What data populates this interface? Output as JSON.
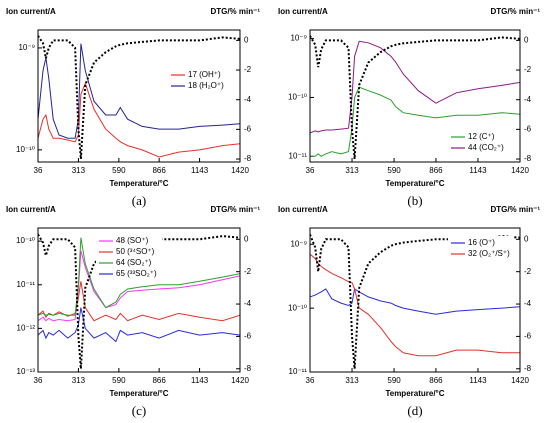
{
  "chart_data": [
    {
      "type": "line",
      "panel_label": "(a)",
      "ylabel": "Ion current/A",
      "y2label": "DTG/% min⁻¹",
      "xlabel": "Temperature/°C",
      "log_y": true,
      "legend": "center right",
      "xlim": [
        36,
        1420
      ],
      "xticks": [
        36,
        313,
        590,
        866,
        1143,
        1420
      ],
      "ylim": [
        7.6e-11,
        1.5e-09
      ],
      "yticks": [
        {
          "value": 1e-09,
          "label": "10⁻⁹"
        },
        {
          "value": 1e-10,
          "label": "10⁻¹⁰"
        }
      ],
      "y2lim": [
        -8.2,
        0.7
      ],
      "y2ticks": [
        0,
        -2,
        -4,
        -6,
        -8
      ],
      "x": [
        36,
        70,
        90,
        110,
        140,
        180,
        240,
        290,
        313,
        330,
        360,
        420,
        500,
        570,
        600,
        650,
        750,
        866,
        1000,
        1143,
        1300,
        1420
      ],
      "series": [
        {
          "name": "17 (OH⁺)",
          "color": "#e8302a",
          "values": [
            1.3e-10,
            2e-10,
            2.2e-10,
            1.6e-10,
            1.3e-10,
            1.3e-10,
            1.25e-10,
            1.2e-10,
            1.4e-10,
            3.5e-10,
            4.5e-10,
            2.5e-10,
            1.6e-10,
            1.3e-10,
            1.2e-10,
            1.1e-10,
            1e-10,
            8.5e-11,
            9.5e-11,
            1e-10,
            1.1e-10,
            1.15e-10
          ]
        },
        {
          "name": "18 (H₂O⁺)",
          "color": "#24248f",
          "values": [
            2e-10,
            6e-10,
            8e-10,
            5e-10,
            2e-10,
            1.4e-10,
            1.3e-10,
            1.3e-10,
            2e-10,
            1.1e-09,
            6e-10,
            3e-10,
            2.2e-10,
            2.2e-10,
            2.6e-10,
            2e-10,
            1.7e-10,
            1.6e-10,
            1.6e-10,
            1.7e-10,
            1.75e-10,
            1.8e-10
          ]
        },
        {
          "axis": "y2",
          "color": "#000000",
          "dashed": true,
          "values": [
            0.3,
            -0.2,
            -1.2,
            -0.5,
            0,
            0,
            0,
            -0.5,
            -6,
            -8,
            -3,
            -1.5,
            -0.8,
            -0.4,
            -0.3,
            -0.2,
            -0.1,
            0,
            0,
            0,
            0.2,
            0.1
          ]
        }
      ]
    },
    {
      "type": "line",
      "panel_label": "(b)",
      "ylabel": "Ion current/A",
      "y2label": "DTG/% min⁻¹",
      "xlabel": "Temperature/°C",
      "log_y": true,
      "legend": "lower right",
      "xlim": [
        36,
        1420
      ],
      "xticks": [
        36,
        313,
        590,
        866,
        1143,
        1420
      ],
      "ylim": [
        8e-12,
        1.4e-09
      ],
      "yticks": [
        {
          "value": 1e-09,
          "label": "10⁻⁹"
        },
        {
          "value": 1e-10,
          "label": "10⁻¹⁰"
        },
        {
          "value": 1e-11,
          "label": "10⁻¹¹"
        }
      ],
      "y2lim": [
        -8.2,
        0.7
      ],
      "y2ticks": [
        0,
        -2,
        -4,
        -6,
        -8
      ],
      "x": [
        36,
        70,
        90,
        110,
        140,
        180,
        240,
        290,
        313,
        330,
        360,
        420,
        500,
        570,
        600,
        650,
        750,
        866,
        1000,
        1143,
        1300,
        1420
      ],
      "series": [
        {
          "name": "12 (C⁺)",
          "color": "#2ca02c",
          "values": [
            1e-11,
            1e-11,
            1.1e-11,
            1e-11,
            1.1e-11,
            1.2e-11,
            1.1e-11,
            1.2e-11,
            3e-11,
            1e-10,
            1.5e-10,
            1.3e-10,
            1.1e-10,
            9e-11,
            7e-11,
            5.5e-11,
            5e-11,
            4.5e-11,
            5e-11,
            5e-11,
            5.5e-11,
            5.2e-11
          ]
        },
        {
          "name": "44 (CO₂⁺)",
          "color": "#8b1a8b",
          "values": [
            2.5e-11,
            2.7e-11,
            2.6e-11,
            2.7e-11,
            2.8e-11,
            2.8e-11,
            2.9e-11,
            3e-11,
            1e-10,
            5e-10,
            9e-10,
            8.5e-10,
            7e-10,
            5e-10,
            4e-10,
            2.5e-10,
            1.3e-10,
            8e-11,
            1.2e-10,
            1.4e-10,
            1.6e-10,
            1.8e-10
          ]
        },
        {
          "axis": "y2",
          "color": "#000000",
          "dashed": true,
          "values": [
            0.3,
            -0.3,
            -1.8,
            -0.6,
            0,
            0,
            0,
            -0.5,
            -6,
            -8,
            -3,
            -1.5,
            -0.8,
            -0.4,
            -0.3,
            -0.2,
            -0.1,
            0,
            0,
            0,
            0.2,
            0.1
          ]
        }
      ]
    },
    {
      "type": "line",
      "panel_label": "(c)",
      "ylabel": "Ion current/A",
      "y2label": "DTG/% min⁻¹",
      "xlabel": "Temperature/°C",
      "log_y": true,
      "legend": "upper center",
      "xlim": [
        36,
        1420
      ],
      "xticks": [
        36,
        313,
        590,
        866,
        1143,
        1420
      ],
      "ylim": [
        1e-13,
        2e-10
      ],
      "yticks": [
        {
          "value": 1e-10,
          "label": "10⁻¹⁰"
        },
        {
          "value": 1e-11,
          "label": "10⁻¹¹"
        },
        {
          "value": 1e-12,
          "label": "10⁻¹²"
        },
        {
          "value": 1e-13,
          "label": "10⁻¹³"
        }
      ],
      "y2lim": [
        -8.2,
        0.7
      ],
      "y2ticks": [
        0,
        -2,
        -4,
        -6,
        -8
      ],
      "x": [
        36,
        70,
        90,
        110,
        140,
        180,
        240,
        290,
        313,
        330,
        360,
        420,
        500,
        570,
        600,
        650,
        750,
        866,
        1000,
        1143,
        1300,
        1420
      ],
      "series": [
        {
          "name": "48 (SO⁺)",
          "color": "#ff33ff",
          "values": [
            1.5e-12,
            1.8e-12,
            1.5e-12,
            1.7e-12,
            1.5e-12,
            1.6e-12,
            1.5e-12,
            1.6e-12,
            8e-12,
            6e-11,
            2.5e-11,
            7e-12,
            3e-12,
            3.5e-12,
            5e-12,
            7e-12,
            7.5e-12,
            8e-12,
            8.5e-12,
            1e-11,
            1.3e-11,
            1.6e-11
          ]
        },
        {
          "name": "50 (³⁴SO⁺)",
          "color": "#e8302a",
          "values": [
            2e-12,
            2.5e-12,
            1.8e-12,
            2.2e-12,
            2e-12,
            2.4e-12,
            1.9e-12,
            2.2e-12,
            5e-12,
            1.2e-11,
            3e-12,
            1.5e-12,
            2e-12,
            1.6e-12,
            2.2e-12,
            1.5e-12,
            2e-12,
            1.6e-12,
            2.2e-12,
            1.8e-12,
            1.5e-12,
            2e-12
          ]
        },
        {
          "name": "64 (SO₂⁺)",
          "color": "#2ca02c",
          "values": [
            2e-12,
            2.2e-12,
            2e-12,
            2.1e-12,
            2e-12,
            2.2e-12,
            2e-12,
            2e-12,
            1e-11,
            1.2e-10,
            3e-11,
            8e-12,
            3e-12,
            4e-12,
            6e-12,
            8e-12,
            9e-12,
            1e-11,
            1e-11,
            1.2e-11,
            1.5e-11,
            1.8e-11
          ]
        },
        {
          "name": "65 (³³SO₂⁺)",
          "color": "#2a2ae0",
          "values": [
            7e-13,
            9e-13,
            6e-13,
            8e-13,
            7e-13,
            9e-13,
            6e-13,
            8e-13,
            1.2e-12,
            3e-12,
            1e-12,
            6e-13,
            8e-13,
            5e-13,
            9e-13,
            7e-13,
            8e-13,
            6e-13,
            9e-13,
            7e-13,
            8e-13,
            7e-13
          ]
        },
        {
          "axis": "y2",
          "color": "#000000",
          "dashed": true,
          "values": [
            0.3,
            -0.2,
            -1,
            -0.4,
            0,
            0,
            0,
            -0.5,
            -6,
            -8,
            -3,
            -1.5,
            -0.8,
            -0.4,
            -0.3,
            -0.2,
            -0.1,
            0,
            0,
            0,
            0.2,
            0.1
          ]
        }
      ]
    },
    {
      "type": "line",
      "panel_label": "(d)",
      "ylabel": "Ion current/A",
      "y2label": "DTG/% min⁻¹",
      "xlabel": "Temperature/°C",
      "log_y": true,
      "legend": "upper right",
      "xlim": [
        36,
        1420
      ],
      "xticks": [
        36,
        313,
        590,
        866,
        1143,
        1420
      ],
      "ylim": [
        1e-11,
        1.8e-09
      ],
      "yticks": [
        {
          "value": 1e-09,
          "label": "10⁻⁹"
        },
        {
          "value": 1e-10,
          "label": "10⁻¹⁰"
        },
        {
          "value": 1e-11,
          "label": "10⁻¹¹"
        }
      ],
      "y2lim": [
        -8.2,
        0.7
      ],
      "y2ticks": [
        0,
        -2,
        -4,
        -6,
        -8
      ],
      "x": [
        36,
        70,
        90,
        110,
        140,
        180,
        240,
        290,
        313,
        330,
        360,
        420,
        500,
        570,
        600,
        650,
        750,
        866,
        1000,
        1143,
        1300,
        1420
      ],
      "series": [
        {
          "name": "16 (O⁺)",
          "color": "#2a2ae0",
          "values": [
            1.5e-10,
            1.6e-10,
            1.7e-10,
            1.8e-10,
            2e-10,
            1.4e-10,
            1.2e-10,
            1.1e-10,
            1.2e-10,
            2e-10,
            1.8e-10,
            1.5e-10,
            1.3e-10,
            1.2e-10,
            1.1e-10,
            1e-10,
            9e-11,
            8e-11,
            9e-11,
            9.5e-11,
            1e-10,
            1.05e-10
          ]
        },
        {
          "name": "32 (O₂⁺/S⁺)",
          "color": "#e8302a",
          "values": [
            7e-10,
            6e-10,
            5e-10,
            4.5e-10,
            4e-10,
            3.5e-10,
            3e-10,
            2.6e-10,
            2.5e-10,
            2e-10,
            1e-10,
            8e-11,
            5e-11,
            3e-11,
            2.5e-11,
            2e-11,
            1.8e-11,
            1.8e-11,
            2.2e-11,
            2.2e-11,
            2e-11,
            2e-11
          ]
        },
        {
          "axis": "y2",
          "color": "#000000",
          "dashed": true,
          "values": [
            0.3,
            -0.5,
            -2,
            -0.6,
            0,
            0,
            0,
            -0.5,
            -6,
            -8,
            -3,
            -1.5,
            -0.8,
            -0.4,
            -0.3,
            -0.2,
            -0.1,
            0,
            0,
            0,
            0.2,
            0.1
          ]
        }
      ]
    }
  ]
}
